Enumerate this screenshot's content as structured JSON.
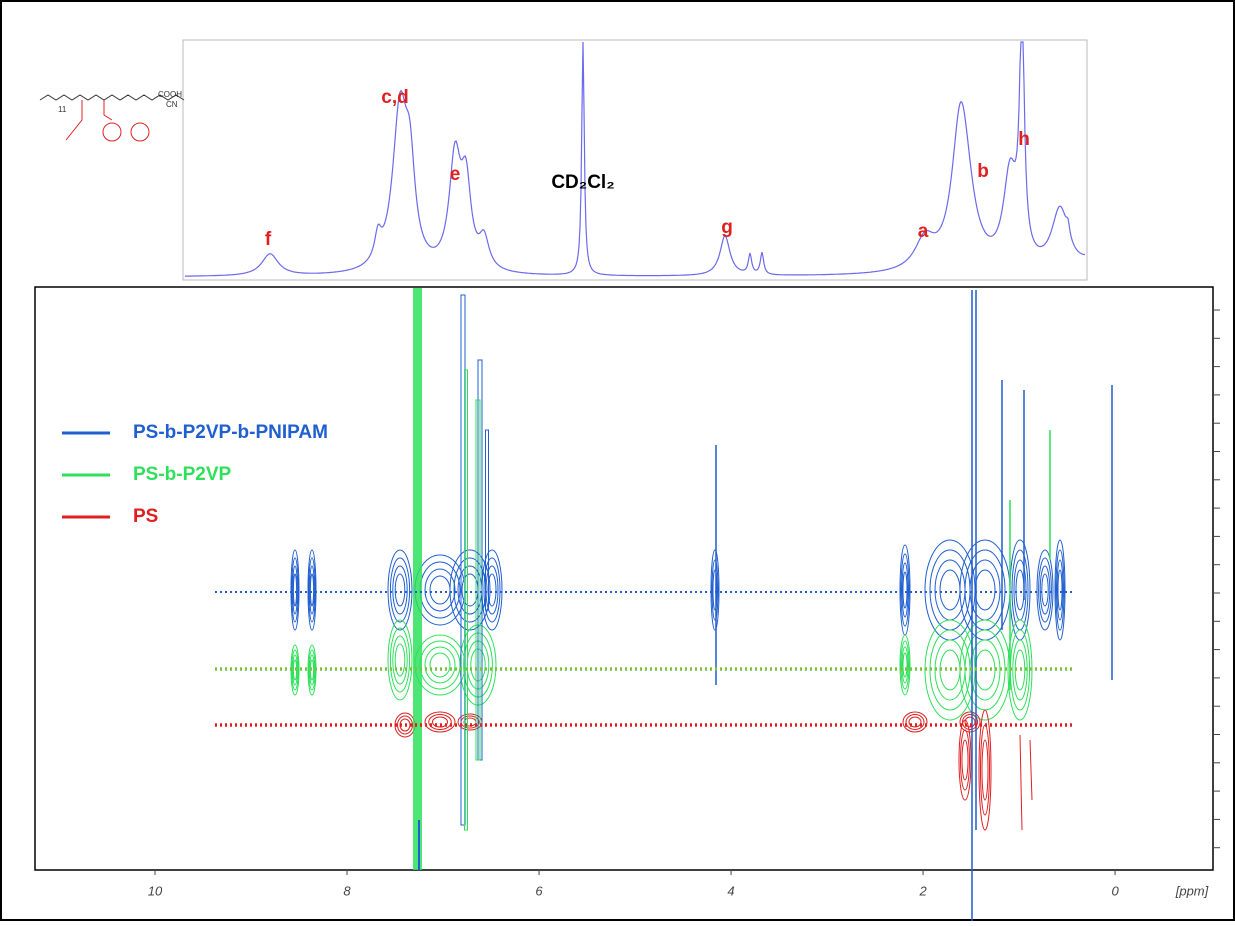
{
  "chart_data": {
    "type": "nmr-dosy",
    "peak_labels": [
      "f",
      "c,d",
      "e",
      "CD₂Cl₂",
      "g",
      "a",
      "b",
      "h"
    ],
    "structure_labels": [
      "11",
      "COOH",
      "CN"
    ],
    "series": [
      {
        "name": "PS-b-P2VP-b-PNIPAM",
        "color": "#1f5fd0"
      },
      {
        "name": "PS-b-P2VP",
        "color": "#2ee05a"
      },
      {
        "name": "PS",
        "color": "#e02020"
      }
    ],
    "xlim": [
      11.25,
      -1.02
    ],
    "xticks": [
      10,
      8,
      6,
      4,
      2,
      0
    ],
    "xlabel": "[ppm]"
  }
}
